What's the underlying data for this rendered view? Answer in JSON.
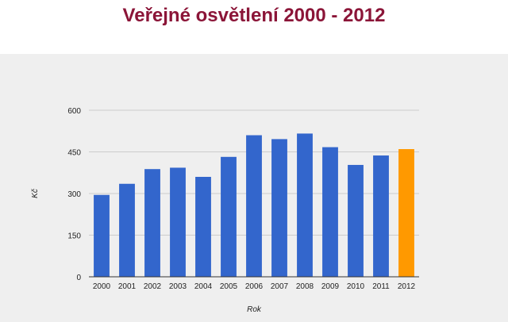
{
  "title": "Veřejné osvětlení 2000 - 2012",
  "colors": {
    "title": "#8b1538",
    "panel_bg": "#efefef",
    "bar_default": "#3366cc",
    "bar_highlight": "#ff9900",
    "gridline": "#cccccc",
    "baseline": "#333333"
  },
  "chart_data": {
    "type": "bar",
    "title": "Veřejné osvětlení 2000 - 2012",
    "xlabel": "Rok",
    "ylabel": "Kč",
    "categories": [
      "2000",
      "2001",
      "2002",
      "2003",
      "2004",
      "2005",
      "2006",
      "2007",
      "2008",
      "2009",
      "2010",
      "2011",
      "2012"
    ],
    "values": [
      295,
      335,
      388,
      393,
      360,
      432,
      510,
      496,
      516,
      467,
      403,
      437,
      460
    ],
    "highlight_index": 12,
    "ylim": [
      0,
      600
    ],
    "yticks": [
      0,
      150,
      300,
      450,
      600
    ],
    "grid": true,
    "legend": "none"
  }
}
